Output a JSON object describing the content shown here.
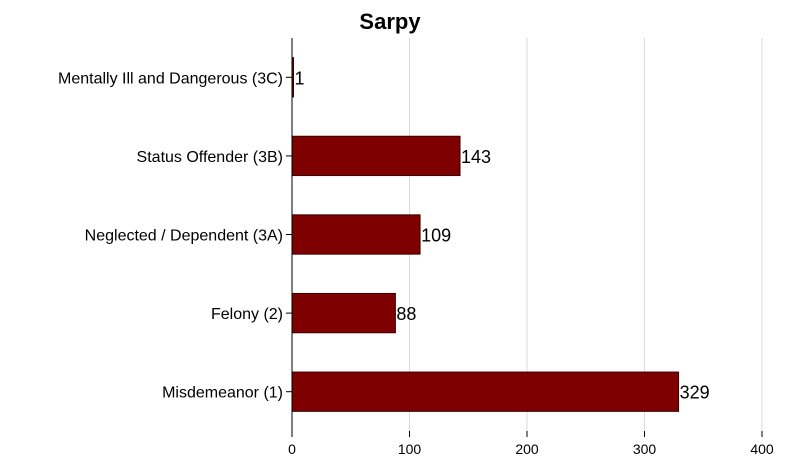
{
  "chart_data": {
    "type": "bar",
    "orientation": "horizontal",
    "title": "Sarpy",
    "xlabel": "",
    "ylabel": "",
    "categories": [
      "Mentally Ill and Dangerous (3C)",
      "Status Offender (3B)",
      "Neglected / Dependent (3A)",
      "Felony (2)",
      "Misdemeanor (1)"
    ],
    "values": [
      1,
      143,
      109,
      88,
      329
    ],
    "data_labels": [
      "1",
      "143",
      "109",
      "88",
      "329"
    ],
    "xlim": [
      0,
      400
    ],
    "x_ticks": [
      0,
      100,
      200,
      300,
      400
    ],
    "x_tick_labels": [
      "0",
      "100",
      "200",
      "300",
      "400"
    ],
    "grid": "vertical",
    "legend": "none",
    "bar_color": "#7f0000"
  }
}
